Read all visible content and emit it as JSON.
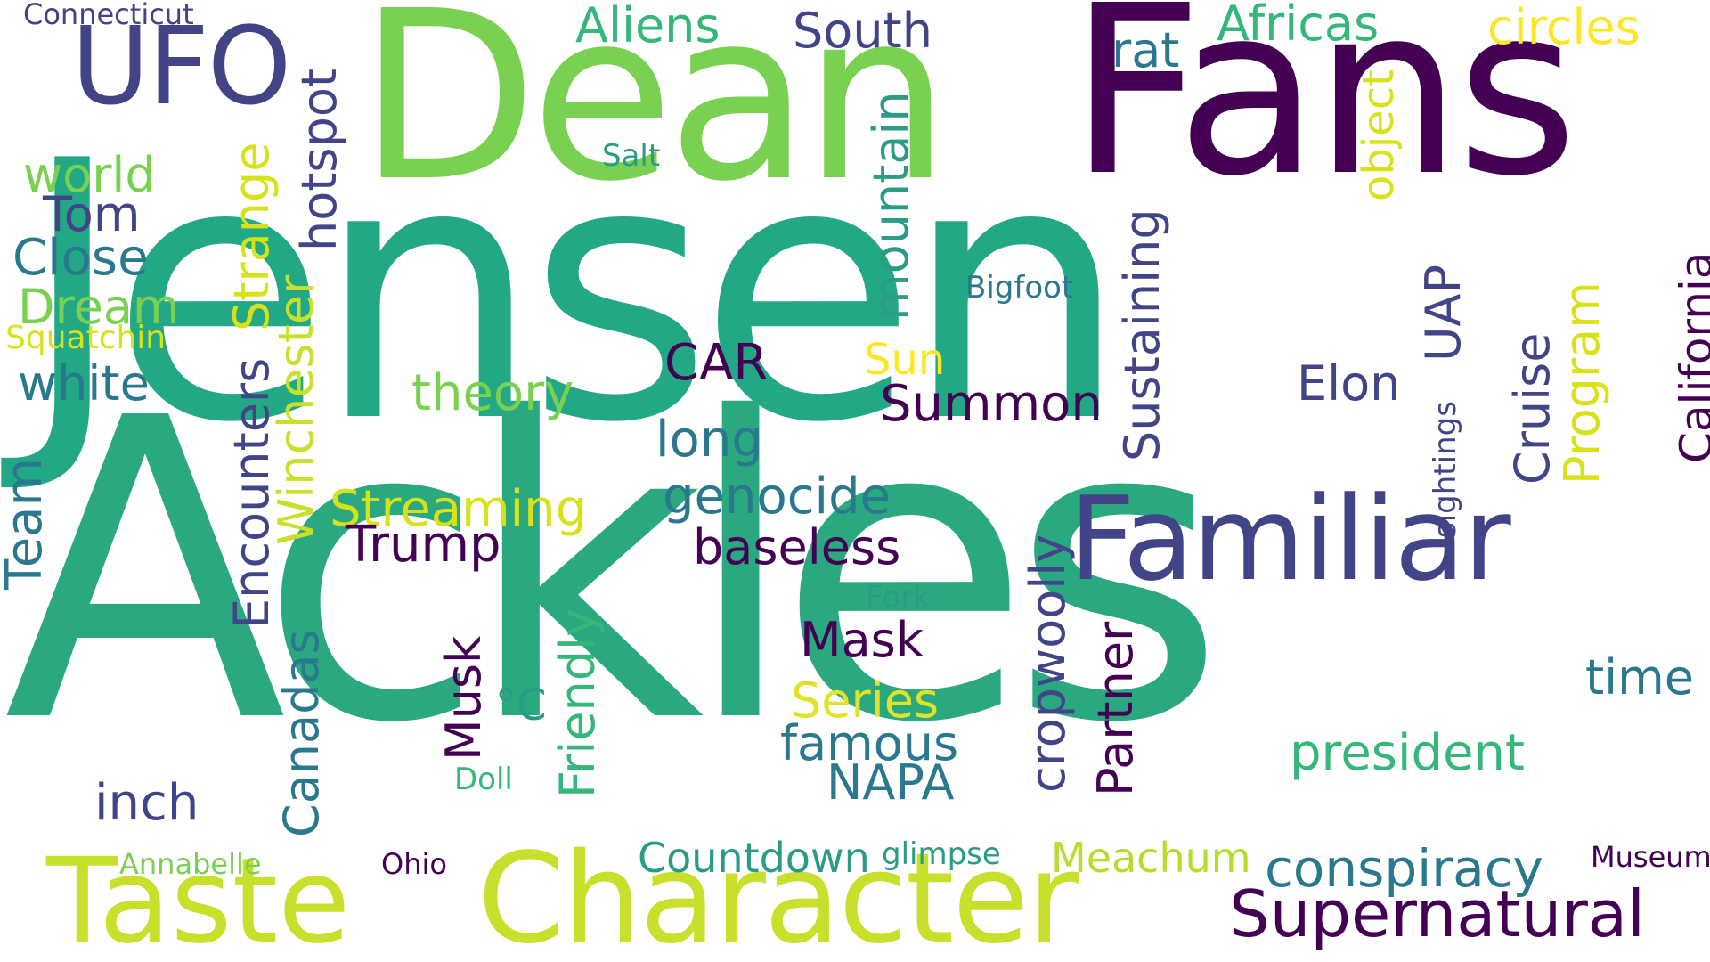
{
  "palette": {
    "background": "#ffffff",
    "colors": [
      "#2a9c86",
      "#7ad151",
      "#440154",
      "#414487",
      "#c8df2b",
      "#22a884",
      "#2a788e",
      "#fde725",
      "#35b779"
    ]
  },
  "words": [
    {
      "key": "jensen",
      "text": "Jensen",
      "color": "#22a884"
    },
    {
      "key": "ackles",
      "text": "Ackles",
      "color": "#2aa880"
    },
    {
      "key": "dean",
      "text": "Dean",
      "color": "#7ad151"
    },
    {
      "key": "fans",
      "text": "Fans",
      "color": "#440154"
    },
    {
      "key": "character",
      "text": "Character",
      "color": "#c8df2b"
    },
    {
      "key": "taste",
      "text": "Taste",
      "color": "#c8df2b"
    },
    {
      "key": "familiar",
      "text": "Familiar",
      "color": "#414487"
    },
    {
      "key": "ufo",
      "text": "UFO",
      "color": "#414487"
    },
    {
      "key": "supernatural",
      "text": "Supernatural",
      "color": "#440154"
    },
    {
      "key": "conspiracy",
      "text": "conspiracy",
      "color": "#2a788e"
    },
    {
      "key": "countdown",
      "text": "Countdown",
      "color": "#2a9c86"
    },
    {
      "key": "meachum",
      "text": "Meachum",
      "color": "#b5de2b"
    },
    {
      "key": "glimpse",
      "text": "glimpse",
      "color": "#2a9c86"
    },
    {
      "key": "president",
      "text": "president",
      "color": "#35b779"
    },
    {
      "key": "nasa",
      "text": "NAPA",
      "color": "#2a788e"
    },
    {
      "key": "famous",
      "text": "famous",
      "color": "#2a788e"
    },
    {
      "key": "series",
      "text": "Series",
      "color": "#e0e32a"
    },
    {
      "key": "mask",
      "text": "Mask",
      "color": "#440154"
    },
    {
      "key": "baseless",
      "text": "baseless",
      "color": "#440154"
    },
    {
      "key": "genocide",
      "text": "genocide",
      "color": "#2a788e"
    },
    {
      "key": "long",
      "text": "long",
      "color": "#2a788e"
    },
    {
      "key": "car",
      "text": "CAR",
      "color": "#440154"
    },
    {
      "key": "summon",
      "text": "Summon",
      "color": "#440154"
    },
    {
      "key": "sun",
      "text": "Sun",
      "color": "#fde725"
    },
    {
      "key": "bigfoot",
      "text": "Bigfoot",
      "color": "#2a788e"
    },
    {
      "key": "elon",
      "text": "Elon",
      "color": "#414487"
    },
    {
      "key": "theory",
      "text": "theory",
      "color": "#7ad151"
    },
    {
      "key": "streaming",
      "text": "Streaming",
      "color": "#d8e219"
    },
    {
      "key": "trump",
      "text": "Trump",
      "color": "#440154"
    },
    {
      "key": "inch",
      "text": "inch",
      "color": "#414487"
    },
    {
      "key": "fork",
      "text": "Fork",
      "color": "#2a9c86"
    },
    {
      "key": "doll",
      "text": "Doll",
      "color": "#35b779"
    },
    {
      "key": "degc",
      "text": "°C",
      "color": "#2a9c86"
    },
    {
      "key": "ohio",
      "text": "Ohio",
      "color": "#440154"
    },
    {
      "key": "annabelle",
      "text": "Annabelle",
      "color": "#7ad151"
    },
    {
      "key": "museum",
      "text": "Museum",
      "color": "#440154"
    },
    {
      "key": "time",
      "text": "time",
      "color": "#2a788e"
    },
    {
      "key": "aliens",
      "text": "Aliens",
      "color": "#35b779"
    },
    {
      "key": "south",
      "text": "South",
      "color": "#414487"
    },
    {
      "key": "africas",
      "text": "Africas",
      "color": "#35b779"
    },
    {
      "key": "circles",
      "text": "circles",
      "color": "#fde725"
    },
    {
      "key": "rat",
      "text": "rat",
      "color": "#2a788e"
    },
    {
      "key": "salt",
      "text": "Salt",
      "color": "#2a9c86"
    },
    {
      "key": "connecticut",
      "text": "Connecticut",
      "color": "#414487"
    },
    {
      "key": "world",
      "text": "world",
      "color": "#7ad151"
    },
    {
      "key": "tom",
      "text": "Tom",
      "color": "#414487"
    },
    {
      "key": "close",
      "text": "Close",
      "color": "#2a788e"
    },
    {
      "key": "dream",
      "text": "Dream",
      "color": "#7ad151"
    },
    {
      "key": "squatchin",
      "text": "Squatchin",
      "color": "#d8e219"
    },
    {
      "key": "white",
      "text": "white",
      "color": "#2a788e"
    },
    {
      "key": "team",
      "text": "Team",
      "color": "#2a788e"
    },
    {
      "key": "hotspot",
      "text": "hotspot",
      "color": "#414487"
    },
    {
      "key": "strange",
      "text": "Strange",
      "color": "#d8e219"
    },
    {
      "key": "winchester",
      "text": "Winchester",
      "color": "#c8df2b"
    },
    {
      "key": "encounters",
      "text": "Encounters",
      "color": "#414487"
    },
    {
      "key": "canadas",
      "text": "Canadas",
      "color": "#2a788e"
    },
    {
      "key": "musk",
      "text": "Musk",
      "color": "#440154"
    },
    {
      "key": "friendly",
      "text": "Friendly",
      "color": "#35b779"
    },
    {
      "key": "mountain",
      "text": "mountain",
      "color": "#2a9c86"
    },
    {
      "key": "cropwoolly",
      "text": "cropwoolly",
      "color": "#414487"
    },
    {
      "key": "partner",
      "text": "Partner",
      "color": "#440154"
    },
    {
      "key": "sustaining",
      "text": "Sustaining",
      "color": "#414487"
    },
    {
      "key": "object",
      "text": "object",
      "color": "#d8e219"
    },
    {
      "key": "uap",
      "text": "UAP",
      "color": "#414487"
    },
    {
      "key": "sightings",
      "text": "sightings",
      "color": "#414487"
    },
    {
      "key": "cruise",
      "text": "Cruise",
      "color": "#414487"
    },
    {
      "key": "program",
      "text": "Program",
      "color": "#d8e219"
    },
    {
      "key": "california",
      "text": "California",
      "color": "#440154"
    }
  ]
}
